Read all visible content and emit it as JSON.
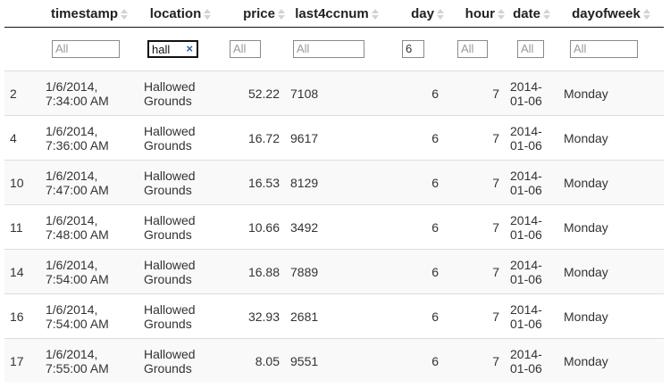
{
  "columns": [
    {
      "key": "rownum",
      "label": ""
    },
    {
      "key": "timestamp",
      "label": "timestamp"
    },
    {
      "key": "location",
      "label": "location"
    },
    {
      "key": "price",
      "label": "price"
    },
    {
      "key": "last4ccnum",
      "label": "last4ccnum"
    },
    {
      "key": "day",
      "label": "day"
    },
    {
      "key": "hour",
      "label": "hour"
    },
    {
      "key": "date",
      "label": "date"
    },
    {
      "key": "dayofweek",
      "label": "dayofweek"
    }
  ],
  "filters": {
    "timestamp": {
      "value": "",
      "placeholder": "All"
    },
    "location": {
      "value": "hall",
      "placeholder": "All",
      "clear_icon": "×"
    },
    "price": {
      "value": "",
      "placeholder": "All"
    },
    "last4ccnum": {
      "value": "",
      "placeholder": "All"
    },
    "day": {
      "value": "6",
      "placeholder": "All"
    },
    "hour": {
      "value": "",
      "placeholder": "All"
    },
    "date": {
      "value": "",
      "placeholder": "All"
    },
    "dayofweek": {
      "value": "",
      "placeholder": "All"
    }
  },
  "rows": [
    {
      "rownum": "2",
      "ts1": "1/6/2014,",
      "ts2": "7:34:00 AM",
      "loc1": "Hallowed",
      "loc2": "Grounds",
      "price": "52.22",
      "cc": "7108",
      "day": "6",
      "hour": "7",
      "date1": "2014-",
      "date2": "01-06",
      "dow": "Monday"
    },
    {
      "rownum": "4",
      "ts1": "1/6/2014,",
      "ts2": "7:36:00 AM",
      "loc1": "Hallowed",
      "loc2": "Grounds",
      "price": "16.72",
      "cc": "9617",
      "day": "6",
      "hour": "7",
      "date1": "2014-",
      "date2": "01-06",
      "dow": "Monday"
    },
    {
      "rownum": "10",
      "ts1": "1/6/2014,",
      "ts2": "7:47:00 AM",
      "loc1": "Hallowed",
      "loc2": "Grounds",
      "price": "16.53",
      "cc": "8129",
      "day": "6",
      "hour": "7",
      "date1": "2014-",
      "date2": "01-06",
      "dow": "Monday"
    },
    {
      "rownum": "11",
      "ts1": "1/6/2014,",
      "ts2": "7:48:00 AM",
      "loc1": "Hallowed",
      "loc2": "Grounds",
      "price": "10.66",
      "cc": "3492",
      "day": "6",
      "hour": "7",
      "date1": "2014-",
      "date2": "01-06",
      "dow": "Monday"
    },
    {
      "rownum": "14",
      "ts1": "1/6/2014,",
      "ts2": "7:54:00 AM",
      "loc1": "Hallowed",
      "loc2": "Grounds",
      "price": "16.88",
      "cc": "7889",
      "day": "6",
      "hour": "7",
      "date1": "2014-",
      "date2": "01-06",
      "dow": "Monday"
    },
    {
      "rownum": "16",
      "ts1": "1/6/2014,",
      "ts2": "7:54:00 AM",
      "loc1": "Hallowed",
      "loc2": "Grounds",
      "price": "32.93",
      "cc": "2681",
      "day": "6",
      "hour": "7",
      "date1": "2014-",
      "date2": "01-06",
      "dow": "Monday"
    },
    {
      "rownum": "17",
      "ts1": "1/6/2014,",
      "ts2": "7:55:00 AM",
      "loc1": "Hallowed",
      "loc2": "Grounds",
      "price": "8.05",
      "cc": "9551",
      "day": "6",
      "hour": "7",
      "date1": "2014-",
      "date2": "01-06",
      "dow": "Monday"
    }
  ]
}
